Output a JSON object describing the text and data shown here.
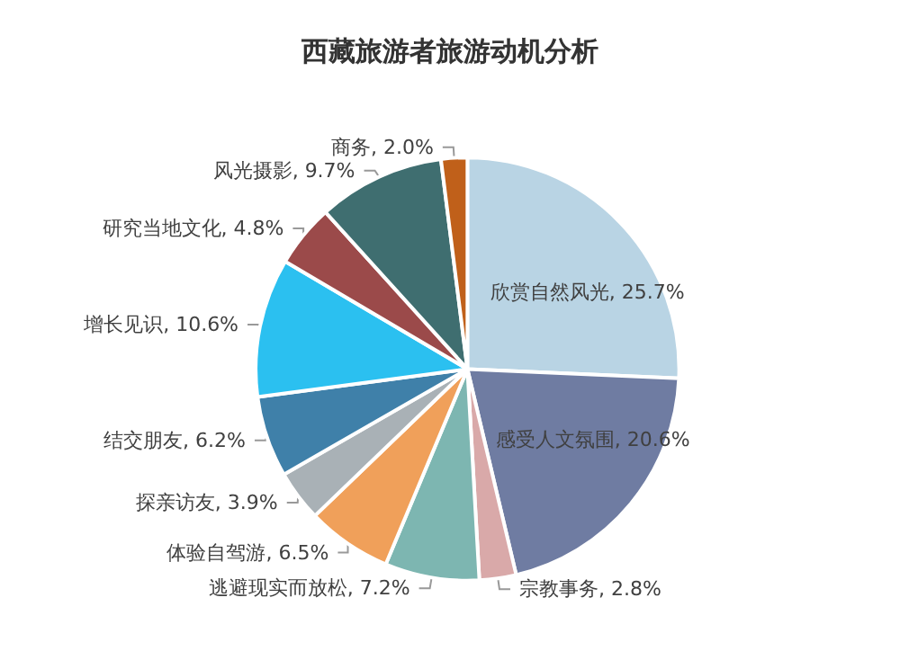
{
  "chart_data": {
    "type": "pie",
    "title": "西藏旅游者旅游动机分析",
    "categories": [
      "欣赏自然风光",
      "感受人文氛围",
      "宗教事务",
      "逃避现实而放松",
      "体验自驾游",
      "探亲访友",
      "结交朋友",
      "增长见识",
      "研究当地文化",
      "风光摄影",
      "商务"
    ],
    "values": [
      25.7,
      20.6,
      2.8,
      7.2,
      6.5,
      3.9,
      6.2,
      10.6,
      4.8,
      9.7,
      2.0
    ],
    "colors": [
      "#b9d4e4",
      "#6f7ca2",
      "#d9a9a9",
      "#7db6b1",
      "#f0a05a",
      "#a9b1b6",
      "#3f80a9",
      "#2bc0f0",
      "#9b4a4a",
      "#3f6e70",
      "#c0601a"
    ],
    "value_labels": [
      "25.7%",
      "20.6%",
      "2.8%",
      "7.2%",
      "6.5%",
      "3.9%",
      "6.2%",
      "10.6%",
      "4.8%",
      "9.7%",
      "2.0%"
    ],
    "legend": false
  }
}
